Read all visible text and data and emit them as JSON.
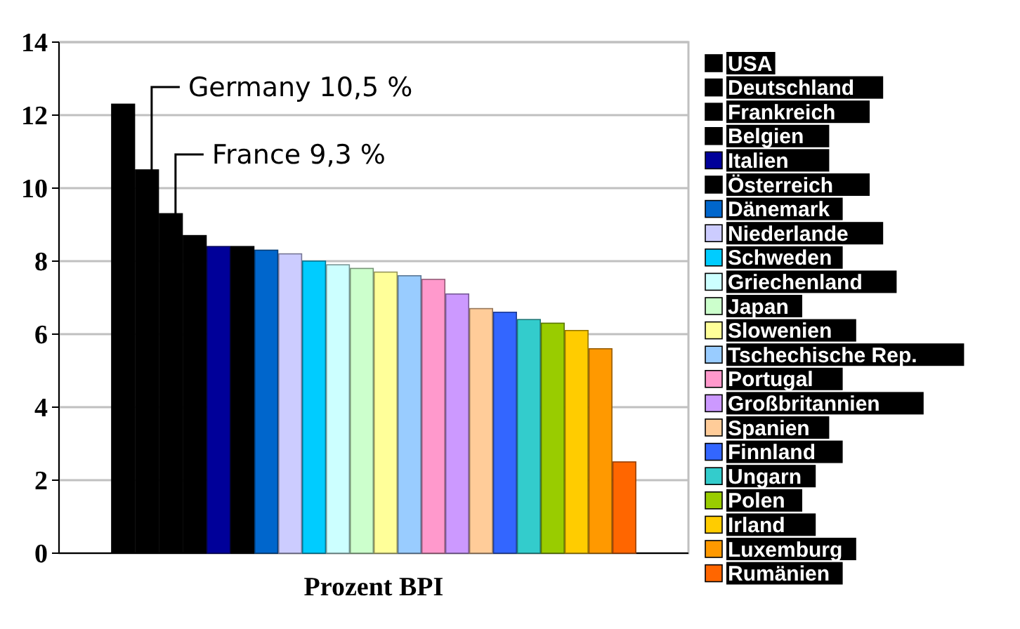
{
  "chart_data": {
    "type": "bar",
    "xlabel": "Prozent BPI",
    "categories": [
      null
    ],
    "ylim": [
      0,
      14
    ],
    "yticks": [
      0,
      2,
      4,
      6,
      8,
      10,
      12,
      14
    ],
    "grid": "y",
    "legend": "right",
    "annotations": [
      "Germany 10,5 %",
      "France 9,3 %"
    ],
    "series": [
      {
        "name": "USA",
        "color": "#000000",
        "values": [
          12.3
        ]
      },
      {
        "name": "Deutschland",
        "color": "#000000",
        "values": [
          10.5
        ]
      },
      {
        "name": "Frankreich",
        "color": "#000000",
        "values": [
          9.3
        ]
      },
      {
        "name": "Belgien",
        "color": "#000000",
        "values": [
          8.7
        ]
      },
      {
        "name": "Italien",
        "color": "#000099",
        "values": [
          8.4
        ]
      },
      {
        "name": "Österreich",
        "color": "#000000",
        "values": [
          8.4
        ]
      },
      {
        "name": "Dänemark",
        "color": "#0066cc",
        "values": [
          8.3
        ]
      },
      {
        "name": "Niederlande",
        "color": "#ccccff",
        "values": [
          8.2
        ]
      },
      {
        "name": "Schweden",
        "color": "#00ccff",
        "values": [
          8.0
        ]
      },
      {
        "name": "Griechenland",
        "color": "#ccffff",
        "values": [
          7.9
        ]
      },
      {
        "name": "Japan",
        "color": "#ccffcc",
        "values": [
          7.8
        ]
      },
      {
        "name": "Slowenien",
        "color": "#ffff99",
        "values": [
          7.7
        ]
      },
      {
        "name": "Tschechische Rep.",
        "color": "#99ccff",
        "values": [
          7.6
        ]
      },
      {
        "name": "Portugal",
        "color": "#ff99cc",
        "values": [
          7.5
        ]
      },
      {
        "name": "Großbritannien",
        "color": "#cc99ff",
        "values": [
          7.1
        ]
      },
      {
        "name": "Spanien",
        "color": "#ffcc99",
        "values": [
          6.7
        ]
      },
      {
        "name": "Finnland",
        "color": "#3366ff",
        "values": [
          6.6
        ]
      },
      {
        "name": "Ungarn",
        "color": "#33cccc",
        "values": [
          6.4
        ]
      },
      {
        "name": "Polen",
        "color": "#99cc00",
        "values": [
          6.3
        ]
      },
      {
        "name": "Irland",
        "color": "#ffcc00",
        "values": [
          6.1
        ]
      },
      {
        "name": "Luxemburg",
        "color": "#ff9900",
        "values": [
          5.6
        ]
      },
      {
        "name": "Rumänien",
        "color": "#ff6600",
        "values": [
          2.5
        ]
      }
    ]
  }
}
